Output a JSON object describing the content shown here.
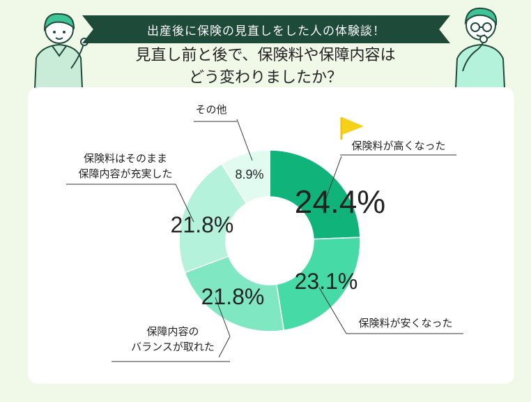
{
  "banner": "出産後に保険の見直しをした人の体験談！",
  "headline_lines": [
    "見直し前と後で、保険料や保障内容は",
    "どう変わりましたか？"
  ],
  "colors": {
    "background": "#f0f8e8",
    "banner": "#1e4a3a",
    "card": "#ffffff",
    "slices": [
      "#10b47a",
      "#46dba6",
      "#7fe8c3",
      "#b5f2db",
      "#e2fbf1"
    ]
  },
  "chart_data": {
    "type": "pie",
    "title": "",
    "categories": [
      "保険料が高くなった",
      "保険料が安くなった",
      "保障内容のバランスが取れた",
      "保険料はそのまま保障内容が充実した",
      "その他"
    ],
    "label_lines": [
      [
        "保険料が高くなった"
      ],
      [
        "保険料が安くなった"
      ],
      [
        "保障内容の",
        "バランスが取れた"
      ],
      [
        "保険料はそのまま",
        "保障内容が充実した"
      ],
      [
        "その他"
      ]
    ],
    "values": [
      24.4,
      23.1,
      21.8,
      21.8,
      8.9
    ],
    "value_labels": [
      "24.4%",
      "23.1%",
      "21.8%",
      "21.8%",
      "8.9%"
    ],
    "donut": true
  }
}
